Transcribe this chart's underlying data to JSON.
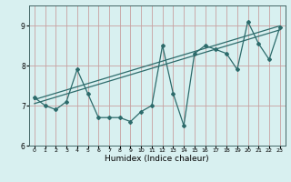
{
  "xlabel": "Humidex (Indice chaleur)",
  "x": [
    0,
    1,
    2,
    3,
    4,
    5,
    6,
    7,
    8,
    9,
    10,
    11,
    12,
    13,
    14,
    15,
    16,
    17,
    18,
    19,
    20,
    21,
    22,
    23
  ],
  "y_main": [
    7.2,
    7.0,
    6.9,
    7.1,
    7.9,
    7.3,
    6.7,
    6.7,
    6.7,
    6.6,
    6.85,
    7.0,
    8.5,
    7.3,
    6.5,
    8.3,
    8.5,
    8.4,
    8.3,
    7.9,
    9.1,
    8.55,
    8.15,
    8.95
  ],
  "y_trend1": [
    7.05,
    7.13,
    7.21,
    7.29,
    7.37,
    7.45,
    7.53,
    7.61,
    7.69,
    7.77,
    7.85,
    7.93,
    8.01,
    8.09,
    8.17,
    8.25,
    8.33,
    8.41,
    8.49,
    8.57,
    8.65,
    8.73,
    8.81,
    8.89
  ],
  "y_trend2": [
    7.15,
    7.23,
    7.31,
    7.39,
    7.47,
    7.55,
    7.63,
    7.71,
    7.79,
    7.87,
    7.95,
    8.03,
    8.11,
    8.19,
    8.27,
    8.35,
    8.43,
    8.51,
    8.59,
    8.67,
    8.75,
    8.83,
    8.91,
    8.99
  ],
  "line_color": "#2d6b6b",
  "bg_color": "#d8f0f0",
  "grid_color": "#c8a0a0",
  "ylim": [
    6.0,
    9.5
  ],
  "xlim": [
    -0.5,
    23.5
  ],
  "yticks": [
    6,
    7,
    8,
    9
  ],
  "xticks": [
    0,
    1,
    2,
    3,
    4,
    5,
    6,
    7,
    8,
    9,
    10,
    11,
    12,
    13,
    14,
    15,
    16,
    17,
    18,
    19,
    20,
    21,
    22,
    23
  ]
}
